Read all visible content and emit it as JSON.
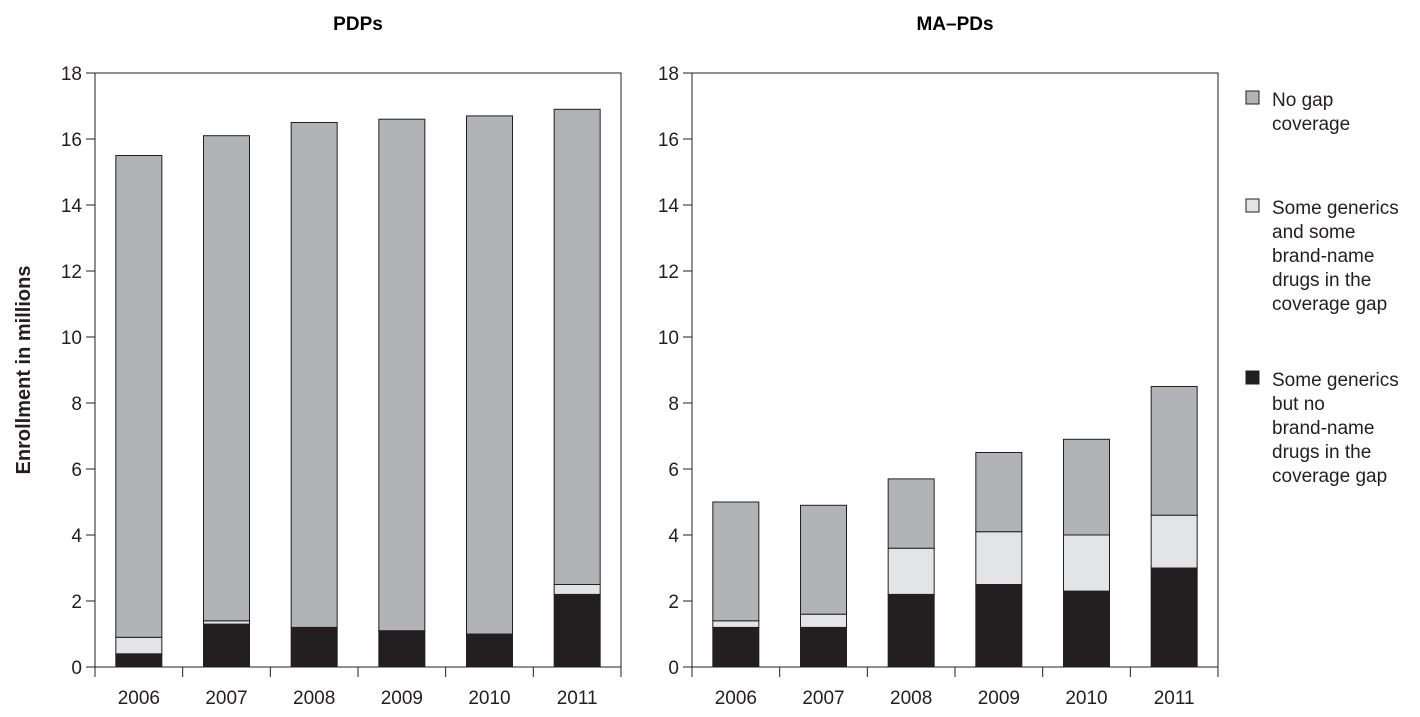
{
  "chart_data": {
    "type": "bar",
    "stacked": true,
    "ylabel": "Enrollment in millions",
    "ylim": [
      0,
      18
    ],
    "yticks": [
      "0",
      "2",
      "4",
      "6",
      "8",
      "10",
      "12",
      "14",
      "16",
      "18"
    ],
    "categories": [
      "2006",
      "2007",
      "2008",
      "2009",
      "2010",
      "2011"
    ],
    "legend_position": "right",
    "legend": [
      {
        "key": "no_gap",
        "lines": [
          "No gap",
          "coverage"
        ],
        "color": "#b1b3b6"
      },
      {
        "key": "some_brand",
        "lines": [
          "Some generics",
          "and some",
          "brand-name",
          "drugs in the",
          "coverage gap"
        ],
        "color": "#e3e4e5"
      },
      {
        "key": "generics_only",
        "lines": [
          "Some generics",
          "but no",
          "brand-name",
          "drugs in the",
          "coverage gap"
        ],
        "color": "#231f20"
      }
    ],
    "panels": [
      {
        "title": "PDPs",
        "series": [
          {
            "key": "generics_only",
            "values": [
              0.4,
              1.3,
              1.2,
              1.1,
              1.0,
              2.2
            ]
          },
          {
            "key": "some_brand",
            "values": [
              0.5,
              0.1,
              0.0,
              0.0,
              0.0,
              0.3
            ]
          },
          {
            "key": "no_gap",
            "values": [
              14.6,
              14.7,
              15.3,
              15.5,
              15.7,
              14.4
            ]
          }
        ]
      },
      {
        "title": "MA–PDs",
        "series": [
          {
            "key": "generics_only",
            "values": [
              1.2,
              1.2,
              2.2,
              2.5,
              2.3,
              3.0
            ]
          },
          {
            "key": "some_brand",
            "values": [
              0.2,
              0.4,
              1.4,
              1.6,
              1.7,
              1.6
            ]
          },
          {
            "key": "no_gap",
            "values": [
              3.6,
              3.3,
              2.1,
              2.4,
              2.9,
              3.9
            ]
          }
        ]
      }
    ]
  }
}
